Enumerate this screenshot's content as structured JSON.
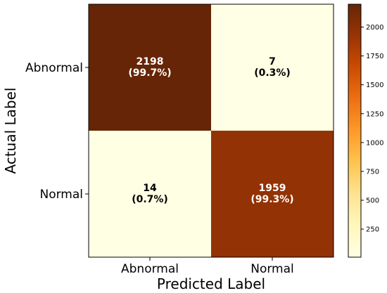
{
  "chart_data": {
    "type": "heatmap",
    "title": "",
    "xlabel": "Predicted Label",
    "ylabel": "Actual Label",
    "x_categories": [
      "Abnormal",
      "Normal"
    ],
    "y_categories": [
      "Abnormal",
      "Normal"
    ],
    "matrix": [
      [
        2198,
        7
      ],
      [
        14,
        1959
      ]
    ],
    "cell_labels": [
      [
        "2198",
        "(99.7%)"
      ],
      [
        "7",
        "(0.3%)"
      ],
      [
        "14",
        "(0.7%)"
      ],
      [
        "1959",
        "(99.3%)"
      ]
    ],
    "colorscale": "YlOrBr",
    "colorbar": {
      "min": 7,
      "max": 2198,
      "ticks": [
        "250",
        "500",
        "750",
        "1000",
        "1250",
        "1500",
        "1750",
        "2000"
      ]
    },
    "colors": {
      "high": "#7a2100",
      "mid": "#fe9929",
      "low": "#ffffe5",
      "text_dark_cell": "#ffffff",
      "text_light_cell": "#000000"
    }
  }
}
